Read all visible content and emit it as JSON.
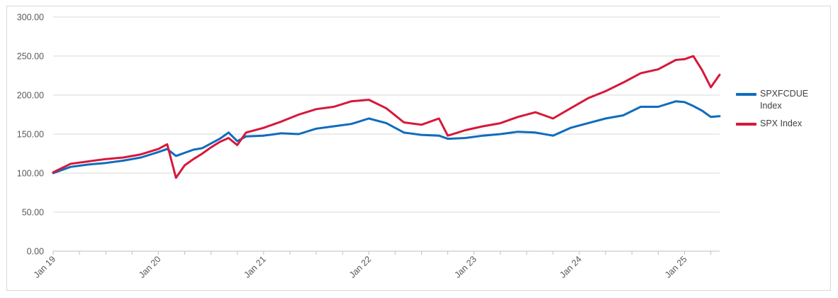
{
  "chart_data": {
    "type": "line",
    "title": "",
    "xlabel": "",
    "ylabel": "",
    "ylim": [
      0,
      300
    ],
    "yticks": [
      "0.00",
      "50.00",
      "100.00",
      "150.00",
      "200.00",
      "250.00",
      "300.00"
    ],
    "xlim": [
      "2019-01",
      "2025-05"
    ],
    "xticks": [
      "Jan 19",
      "Jan 20",
      "Jan 21",
      "Jan 22",
      "Jan 23",
      "Jan 24",
      "Jan 25"
    ],
    "grid": "horizontal",
    "legend_position": "right",
    "x": [
      "2019-01",
      "2019-03",
      "2019-05",
      "2019-07",
      "2019-09",
      "2019-11",
      "2020-01",
      "2020-02",
      "2020-03",
      "2020-04",
      "2020-05",
      "2020-06",
      "2020-07",
      "2020-08",
      "2020-09",
      "2020-10",
      "2020-11",
      "2021-01",
      "2021-03",
      "2021-05",
      "2021-07",
      "2021-09",
      "2021-11",
      "2022-01",
      "2022-03",
      "2022-05",
      "2022-07",
      "2022-09",
      "2022-10",
      "2022-12",
      "2023-02",
      "2023-04",
      "2023-06",
      "2023-08",
      "2023-10",
      "2023-12",
      "2024-02",
      "2024-04",
      "2024-06",
      "2024-08",
      "2024-10",
      "2024-12",
      "2025-01",
      "2025-02",
      "2025-03",
      "2025-04",
      "2025-05"
    ],
    "series": [
      {
        "name": "SPXFCDUE Index",
        "color": "#0f6cbd",
        "values": [
          100,
          108,
          111,
          113,
          116,
          120,
          127,
          131,
          122,
          126,
          130,
          132,
          138,
          144,
          152,
          141,
          147,
          148,
          151,
          150,
          157,
          160,
          163,
          170,
          164,
          152,
          149,
          148,
          144,
          145,
          148,
          150,
          153,
          152,
          148,
          158,
          164,
          170,
          174,
          185,
          185,
          192,
          191,
          186,
          180,
          172,
          173
        ]
      },
      {
        "name": "SPX Index",
        "color": "#d6183a",
        "values": [
          101,
          112,
          115,
          118,
          120,
          124,
          131,
          137,
          94,
          110,
          118,
          125,
          133,
          140,
          145,
          136,
          152,
          158,
          166,
          175,
          182,
          185,
          192,
          194,
          183,
          165,
          162,
          170,
          148,
          155,
          160,
          164,
          172,
          178,
          170,
          183,
          196,
          205,
          216,
          228,
          233,
          245,
          246,
          250,
          232,
          210,
          226
        ]
      }
    ]
  }
}
